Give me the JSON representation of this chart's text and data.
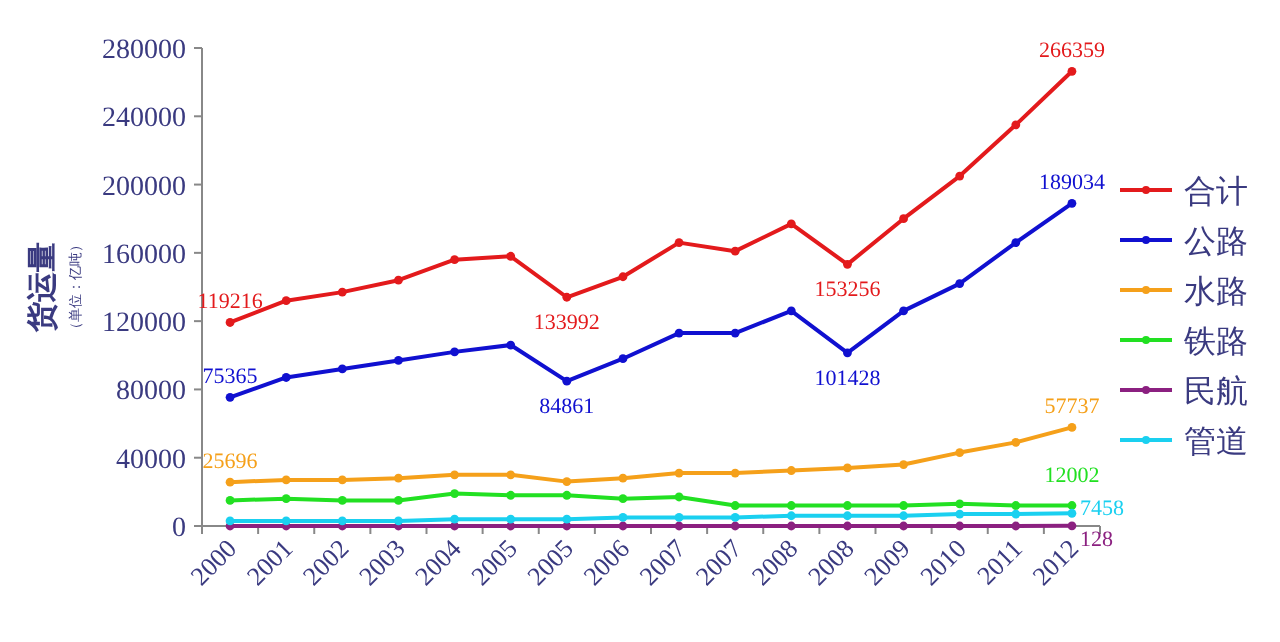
{
  "chart_data": {
    "type": "line",
    "ylabel": "货运量（单位：亿吨）",
    "categories": [
      "2000",
      "2001",
      "2002",
      "2003",
      "2004",
      "2005",
      "2005",
      "2006",
      "2007",
      "2007",
      "2008",
      "2008",
      "2009",
      "2010",
      "2011",
      "2012"
    ],
    "ylim": [
      0,
      280000
    ],
    "yticks": [
      0,
      40000,
      80000,
      120000,
      160000,
      200000,
      240000,
      280000
    ],
    "grid": false,
    "legend": "right",
    "marker": "circle",
    "line_style": "solid",
    "series": [
      {
        "name": "合计",
        "color": "#e31a1c",
        "values": [
          119216,
          132000,
          137000,
          144000,
          156000,
          158000,
          133992,
          146000,
          166000,
          161000,
          177000,
          153256,
          180000,
          205000,
          235000,
          266359
        ],
        "value_labels": [
          "119216",
          null,
          null,
          null,
          null,
          null,
          "133992",
          null,
          null,
          null,
          null,
          "153256",
          null,
          null,
          null,
          "266359"
        ]
      },
      {
        "name": "公路",
        "color": "#1010d0",
        "values": [
          75365,
          87000,
          92000,
          97000,
          102000,
          106000,
          84861,
          98000,
          113000,
          113000,
          126000,
          101428,
          126000,
          142000,
          166000,
          189034
        ],
        "value_labels": [
          "75365",
          null,
          null,
          null,
          null,
          null,
          "84861",
          null,
          null,
          null,
          null,
          "101428",
          null,
          null,
          null,
          "189034"
        ]
      },
      {
        "name": "水路",
        "color": "#f5a01a",
        "values": [
          25696,
          27000,
          27000,
          28000,
          30000,
          30000,
          26000,
          28000,
          31000,
          31000,
          32500,
          34000,
          36000,
          43000,
          49000,
          57737
        ],
        "value_labels": [
          "25696",
          null,
          null,
          null,
          null,
          null,
          null,
          null,
          null,
          null,
          null,
          null,
          null,
          null,
          null,
          "57737"
        ]
      },
      {
        "name": "铁路",
        "color": "#22e022",
        "values": [
          15000,
          16000,
          15000,
          15000,
          19000,
          18000,
          18000,
          16000,
          17000,
          12000,
          12000,
          12000,
          12000,
          13000,
          12000,
          12002
        ],
        "value_labels": [
          null,
          null,
          null,
          null,
          null,
          null,
          null,
          null,
          null,
          null,
          null,
          null,
          null,
          null,
          null,
          "12002"
        ]
      },
      {
        "name": "民航",
        "color": "#8b2080",
        "values": [
          0,
          0,
          0,
          0,
          0,
          0,
          0,
          0,
          0,
          0,
          0,
          0,
          0,
          0,
          0,
          128
        ],
        "value_labels": [
          null,
          null,
          null,
          null,
          null,
          null,
          null,
          null,
          null,
          null,
          null,
          null,
          null,
          null,
          null,
          "128"
        ]
      },
      {
        "name": "管道",
        "color": "#1ad0f0",
        "values": [
          3000,
          3000,
          3000,
          3000,
          4000,
          4000,
          4000,
          5000,
          5000,
          5000,
          6000,
          6000,
          6000,
          7000,
          7000,
          7458
        ],
        "value_labels": [
          null,
          null,
          null,
          null,
          null,
          null,
          null,
          null,
          null,
          null,
          null,
          null,
          null,
          null,
          null,
          "7458"
        ]
      }
    ]
  }
}
